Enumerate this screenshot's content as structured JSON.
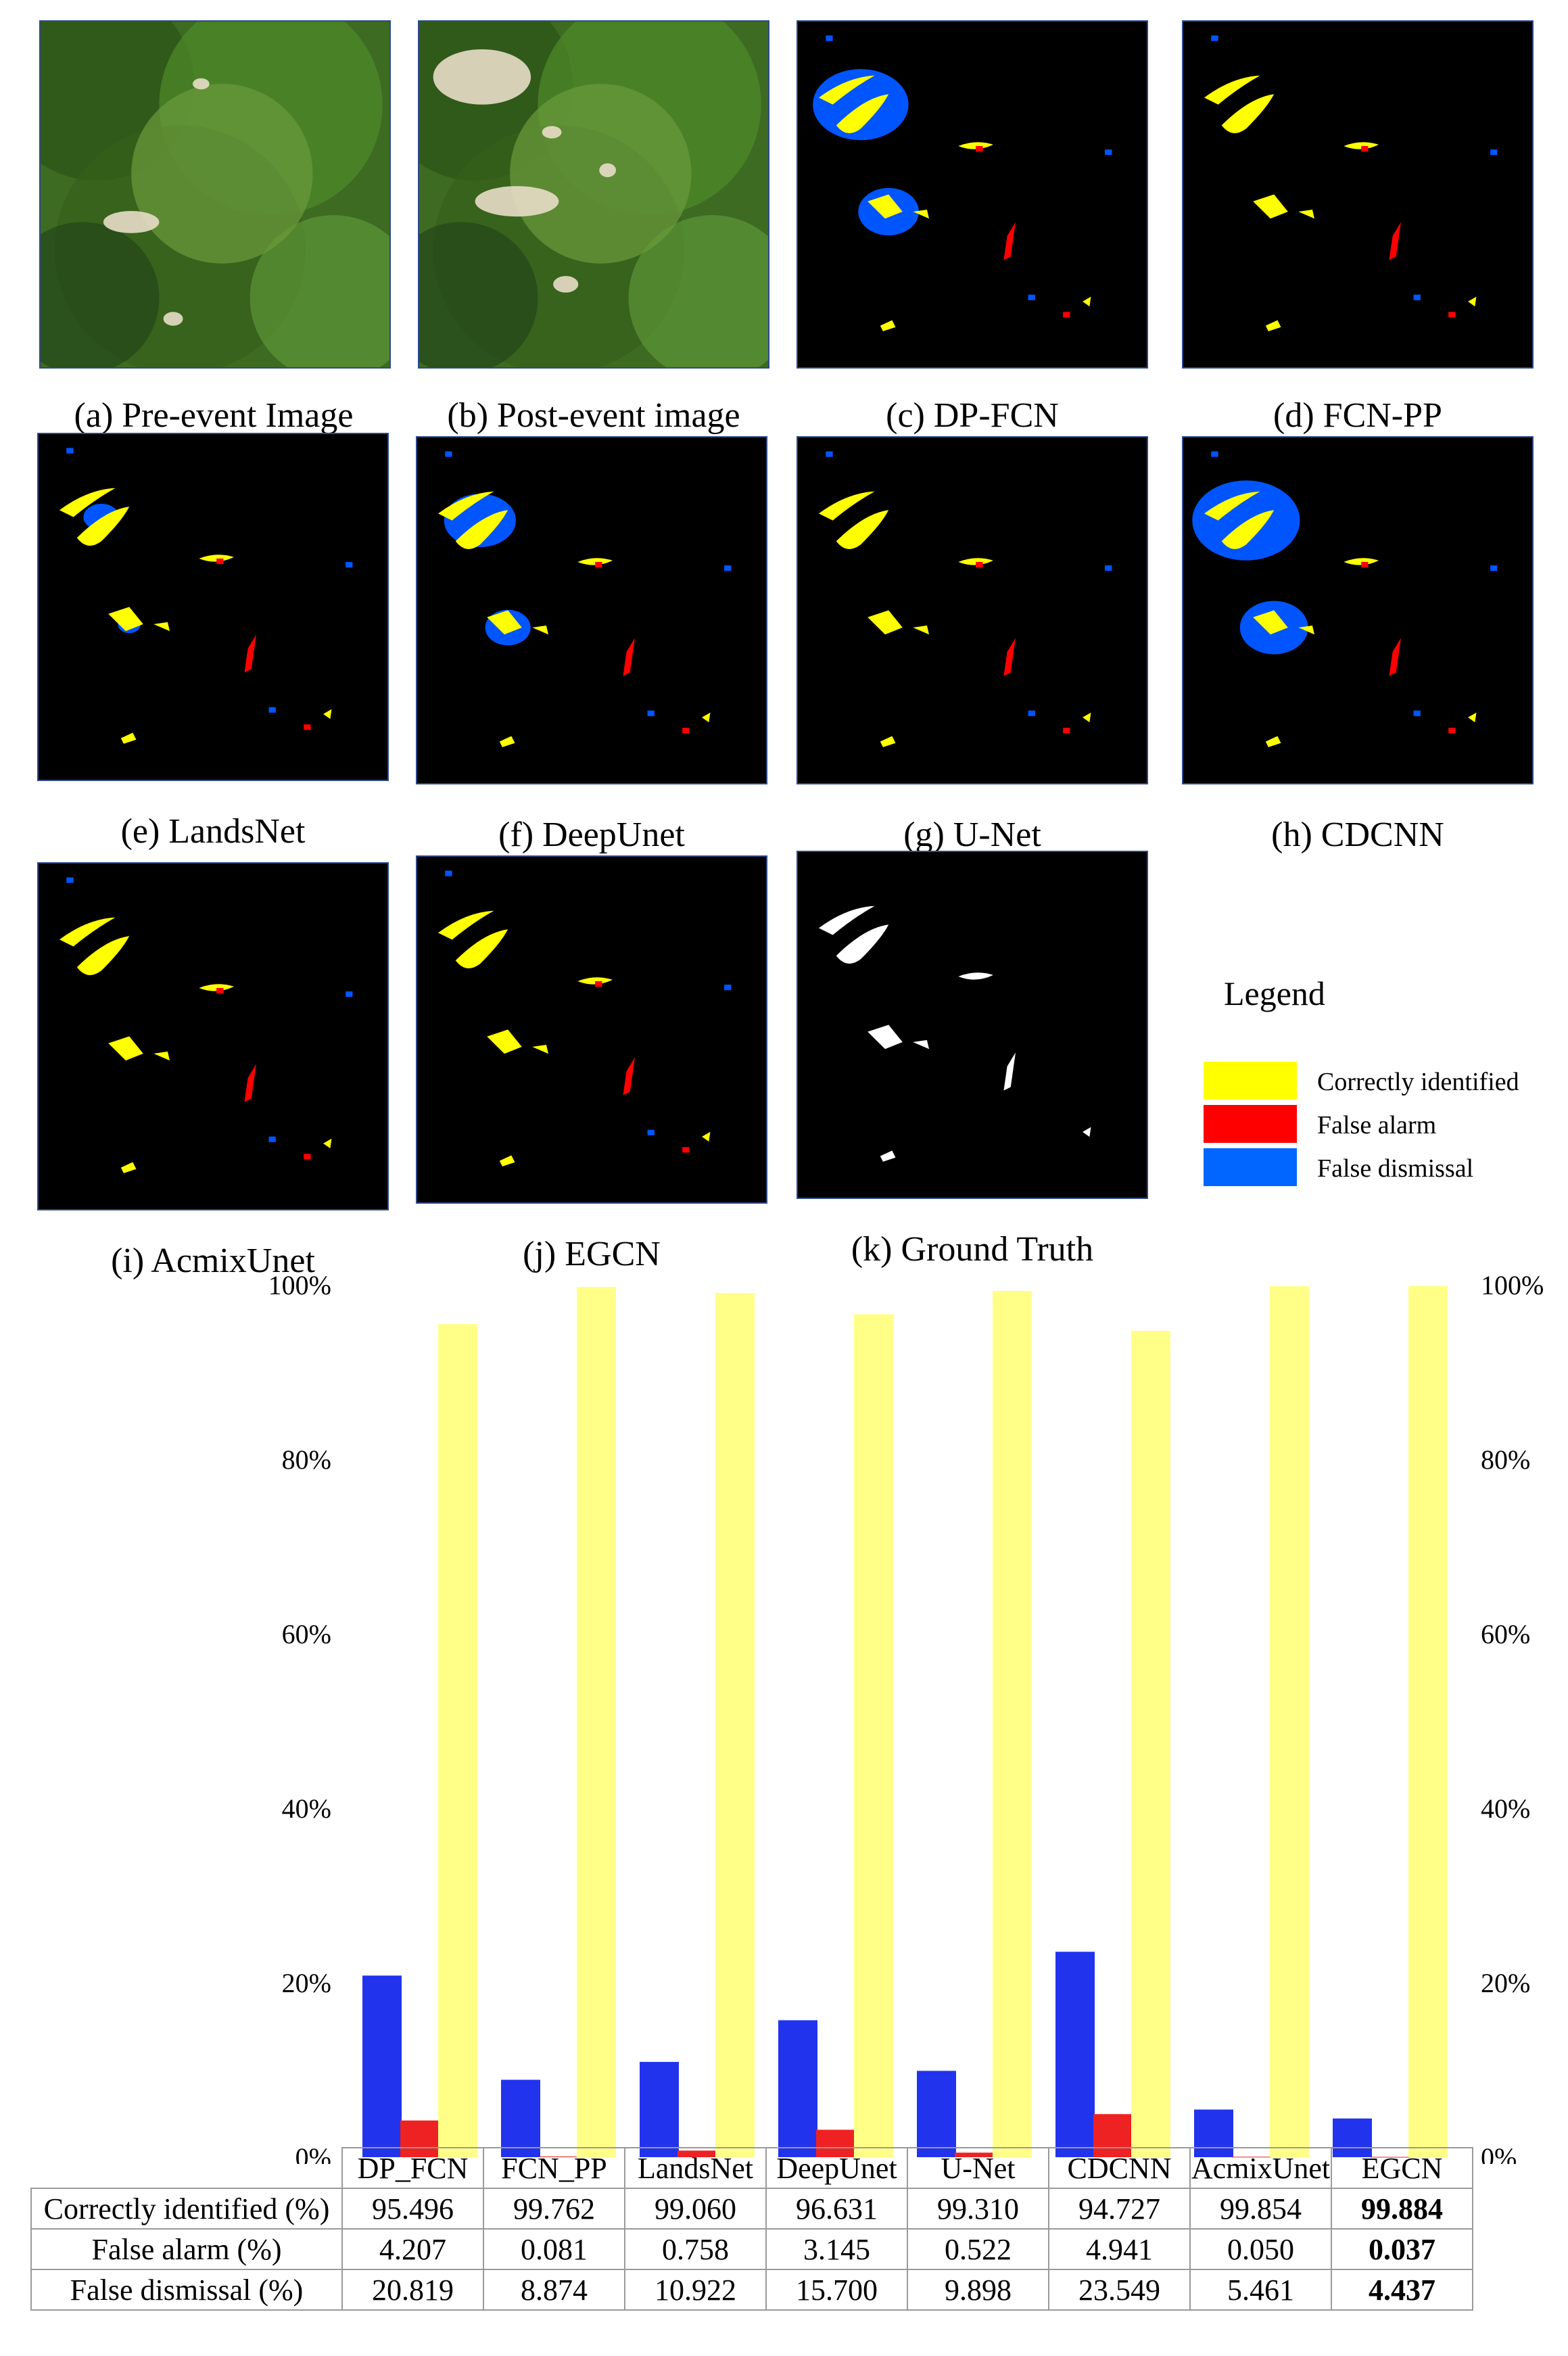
{
  "panels": [
    {
      "id": "a",
      "caption": "(a) Pre-event Image",
      "kind": "photo-pre"
    },
    {
      "id": "b",
      "caption": "(b) Post-event image",
      "kind": "photo-post"
    },
    {
      "id": "c",
      "caption": "(c) DP-FCN",
      "kind": "map"
    },
    {
      "id": "d",
      "caption": "(d) FCN-PP",
      "kind": "map"
    },
    {
      "id": "e",
      "caption": "(e) LandsNet",
      "kind": "map"
    },
    {
      "id": "f",
      "caption": "(f) DeepUnet",
      "kind": "map"
    },
    {
      "id": "g",
      "caption": "(g) U-Net",
      "kind": "map"
    },
    {
      "id": "h",
      "caption": "(h) CDCNN",
      "kind": "map"
    },
    {
      "id": "i",
      "caption": "(i) AcmixUnet",
      "kind": "map"
    },
    {
      "id": "j",
      "caption": "(j) EGCN",
      "kind": "map"
    },
    {
      "id": "k",
      "caption": "(k) Ground Truth",
      "kind": "truth"
    }
  ],
  "legend": {
    "title": "Legend",
    "items": [
      {
        "label": "Correctly identified",
        "color": "#ffff00"
      },
      {
        "label": "False alarm",
        "color": "#ff0000"
      },
      {
        "label": "False dismissal",
        "color": "#0066ff"
      }
    ]
  },
  "chart_data": {
    "type": "bar",
    "categories": [
      "DP_FCN",
      "FCN_PP",
      "LandsNet",
      "DeepUnet",
      "U-Net",
      "CDCNN",
      "AcmixUnet",
      "EGCN"
    ],
    "series": [
      {
        "name": "False dismissal (%)",
        "color": "#2233ee",
        "values": [
          20.819,
          8.874,
          10.922,
          15.7,
          9.898,
          23.549,
          5.461,
          4.437
        ]
      },
      {
        "name": "False alarm (%)",
        "color": "#ee2222",
        "values": [
          4.207,
          0.081,
          0.758,
          3.145,
          0.522,
          4.941,
          0.05,
          0.037
        ]
      },
      {
        "name": "Correctly identified (%)",
        "color": "#ffff88",
        "values": [
          95.496,
          99.762,
          99.06,
          96.631,
          99.31,
          94.727,
          99.854,
          99.884
        ]
      }
    ],
    "yticks": [
      "0%",
      "20%",
      "40%",
      "60%",
      "80%",
      "100%"
    ],
    "ylim": [
      0,
      100
    ],
    "table": {
      "rows": [
        {
          "label": "Correctly identified (%)",
          "values": [
            "95.496",
            "99.762",
            "99.060",
            "96.631",
            "99.310",
            "94.727",
            "99.854",
            "99.884"
          ],
          "bold_index": 7
        },
        {
          "label": "False alarm (%)",
          "values": [
            "4.207",
            "0.081",
            "0.758",
            "3.145",
            "0.522",
            "4.941",
            "0.050",
            "0.037"
          ],
          "bold_index": 7
        },
        {
          "label": "False dismissal (%)",
          "values": [
            "20.819",
            "8.874",
            "10.922",
            "15.700",
            "9.898",
            "23.549",
            "5.461",
            "4.437"
          ],
          "bold_index": 7
        }
      ]
    }
  }
}
